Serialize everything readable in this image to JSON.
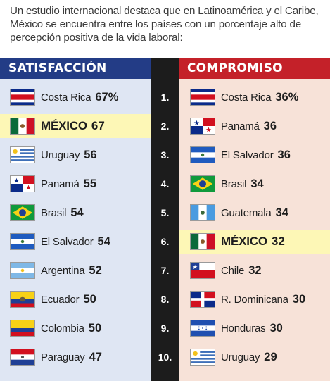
{
  "intro": "Un estudio internacional destaca que en Latinoamérica y el Caribe, México se encuentra entre los países con un porcentaje alto de percepción positiva de la vida laboral:",
  "headers": {
    "left": "SATISFACCIÓN",
    "right": "COMPROMISO"
  },
  "colors": {
    "left_header": "#233c86",
    "right_header": "#c42129",
    "left_bg": "#dfe6f3",
    "right_bg": "#f7e2d8",
    "mid_bg": "#1c1c1c",
    "highlight": "#fdf7b6"
  },
  "ranks": [
    "1.",
    "2.",
    "3.",
    "4.",
    "5.",
    "6.",
    "7.",
    "8.",
    "9.",
    "10."
  ],
  "satisfaccion": [
    {
      "flag": "costa-rica-flag",
      "country": "Costa Rica",
      "value": "67%",
      "highlight": false
    },
    {
      "flag": "mexico-flag",
      "country": "MÉXICO",
      "value": "67",
      "highlight": true
    },
    {
      "flag": "uruguay-flag",
      "country": "Uruguay",
      "value": "56",
      "highlight": false
    },
    {
      "flag": "panama-flag",
      "country": "Panamá",
      "value": "55",
      "highlight": false
    },
    {
      "flag": "brasil-flag",
      "country": "Brasil",
      "value": "54",
      "highlight": false
    },
    {
      "flag": "el-salvador-flag",
      "country": "El Salvador",
      "value": "54",
      "highlight": false
    },
    {
      "flag": "argentina-flag",
      "country": "Argentina",
      "value": "52",
      "highlight": false
    },
    {
      "flag": "ecuador-flag",
      "country": "Ecuador",
      "value": "50",
      "highlight": false
    },
    {
      "flag": "colombia-flag",
      "country": "Colombia",
      "value": "50",
      "highlight": false
    },
    {
      "flag": "paraguay-flag",
      "country": "Paraguay",
      "value": "47",
      "highlight": false
    }
  ],
  "compromiso": [
    {
      "flag": "costa-rica-flag",
      "country": "Costa Rica",
      "value": "36%",
      "highlight": false
    },
    {
      "flag": "panama-flag",
      "country": "Panamá",
      "value": "36",
      "highlight": false
    },
    {
      "flag": "el-salvador-flag",
      "country": "El Salvador",
      "value": "36",
      "highlight": false
    },
    {
      "flag": "brasil-flag",
      "country": "Brasil",
      "value": "34",
      "highlight": false
    },
    {
      "flag": "guatemala-flag",
      "country": "Guatemala",
      "value": "34",
      "highlight": false
    },
    {
      "flag": "mexico-flag",
      "country": "MÉXICO",
      "value": "32",
      "highlight": true
    },
    {
      "flag": "chile-flag",
      "country": "Chile",
      "value": "32",
      "highlight": false
    },
    {
      "flag": "dominicana-flag",
      "country": "R. Dominicana",
      "value": "30",
      "highlight": false
    },
    {
      "flag": "honduras-flag",
      "country": "Honduras",
      "value": "30",
      "highlight": false
    },
    {
      "flag": "uruguay-flag",
      "country": "Uruguay",
      "value": "29",
      "highlight": false
    }
  ]
}
